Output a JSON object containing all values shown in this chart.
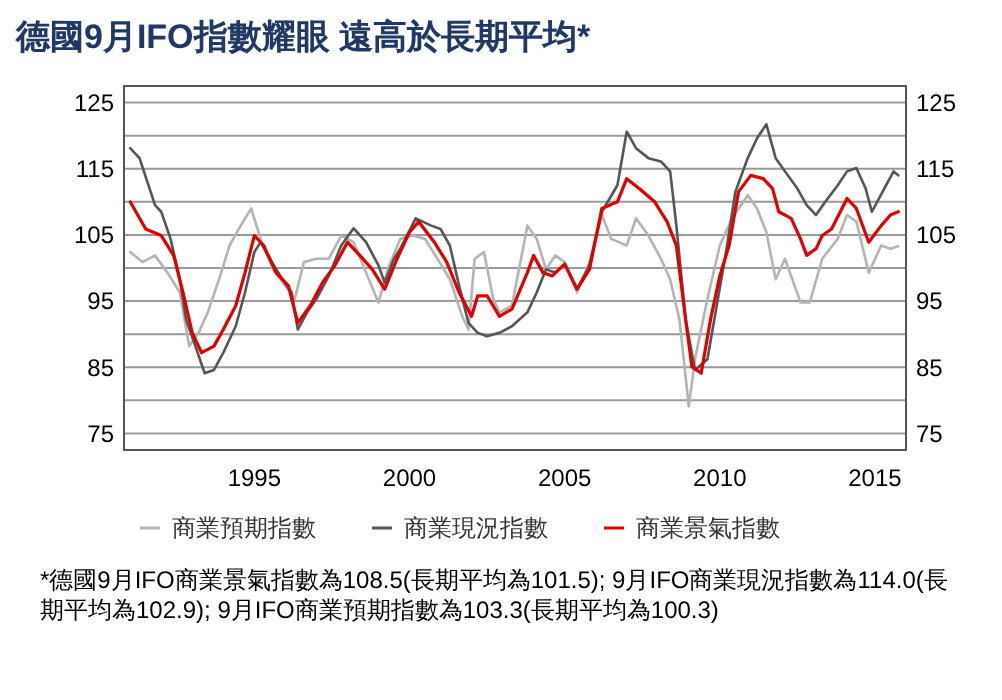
{
  "chart_data": {
    "type": "line",
    "title": "德國9月IFO指數耀眼  遠高於長期平均*",
    "xlim": [
      1990.8,
      2016
    ],
    "xticks": [
      1995,
      2000,
      2005,
      2010,
      2015
    ],
    "ylim": [
      72.5,
      127.5
    ],
    "yticks": [
      75,
      85,
      95,
      105,
      115,
      125
    ],
    "y2lim": [
      72.5,
      127.5
    ],
    "y2ticks": [
      75,
      85,
      95,
      105,
      115,
      125
    ],
    "grid": "y",
    "legend": "bottom",
    "line_style": "solid",
    "series": [
      {
        "name": "商業預期指數",
        "color": "#b4b4b4",
        "x": [
          1991.0,
          1991.4,
          1991.8,
          1992.2,
          1992.6,
          1992.9,
          1993.2,
          1993.5,
          1993.9,
          1994.2,
          1994.5,
          1994.9,
          1995.2,
          1995.6,
          1996.0,
          1996.3,
          1996.6,
          1997.0,
          1997.4,
          1997.8,
          1998.2,
          1998.6,
          1999.0,
          1999.3,
          1999.7,
          2000.1,
          2000.5,
          2000.9,
          2001.3,
          2001.7,
          2001.9,
          2002.1,
          2002.4,
          2002.7,
          2002.9,
          2003.3,
          2003.8,
          2004.1,
          2004.4,
          2004.7,
          2005.0,
          2005.4,
          2005.8,
          2006.2,
          2006.5,
          2007.0,
          2007.3,
          2007.7,
          2008.1,
          2008.4,
          2008.7,
          2009.0,
          2009.2,
          2009.6,
          2010.0,
          2010.4,
          2010.9,
          2011.2,
          2011.5,
          2011.8,
          2012.1,
          2012.6,
          2012.9,
          2013.3,
          2013.8,
          2014.1,
          2014.4,
          2014.8,
          2015.2,
          2015.5,
          2015.75
        ],
        "values": [
          102.4,
          100.9,
          101.9,
          99.3,
          96.3,
          88.2,
          90.2,
          93.3,
          98.8,
          103.4,
          105.9,
          109.0,
          104.4,
          99.8,
          97.3,
          95.3,
          100.9,
          101.4,
          101.4,
          104.9,
          103.9,
          99.3,
          94.8,
          99.8,
          104.4,
          104.9,
          104.4,
          101.4,
          98.3,
          92.7,
          90.7,
          101.4,
          102.4,
          95.3,
          93.3,
          94.3,
          106.4,
          104.4,
          99.8,
          101.9,
          100.9,
          96.3,
          100.9,
          108.0,
          104.4,
          103.4,
          107.5,
          104.9,
          101.4,
          98.3,
          92.2,
          79.1,
          86.2,
          95.3,
          103.4,
          107.5,
          111.0,
          109.0,
          105.4,
          98.3,
          101.4,
          94.8,
          94.8,
          101.4,
          104.4,
          108.0,
          107.0,
          99.3,
          103.4,
          102.9,
          103.3
        ]
      },
      {
        "name": "商業現況指數",
        "color": "#555555",
        "x": [
          1991.0,
          1991.3,
          1991.8,
          1992.0,
          1992.3,
          1992.6,
          1992.8,
          1993.1,
          1993.4,
          1993.7,
          1994.0,
          1994.4,
          1994.7,
          1995.0,
          1995.2,
          1995.5,
          1995.9,
          1996.2,
          1996.4,
          1996.7,
          1997.0,
          1997.4,
          1997.8,
          1998.2,
          1998.6,
          1999.0,
          1999.2,
          1999.5,
          1999.7,
          2000.2,
          2000.7,
          2001.0,
          2001.3,
          2001.6,
          2001.9,
          2002.2,
          2002.5,
          2002.9,
          2003.3,
          2003.8,
          2004.1,
          2004.4,
          2004.7,
          2005.0,
          2005.4,
          2005.8,
          2006.2,
          2006.7,
          2007.0,
          2007.3,
          2007.7,
          2008.1,
          2008.4,
          2008.6,
          2008.9,
          2009.2,
          2009.6,
          2009.9,
          2010.2,
          2010.5,
          2010.9,
          2011.2,
          2011.5,
          2011.8,
          2012.1,
          2012.5,
          2012.8,
          2013.1,
          2013.4,
          2013.8,
          2014.1,
          2014.4,
          2014.7,
          2014.9,
          2015.3,
          2015.6,
          2015.75
        ],
        "values": [
          118.1,
          116.6,
          109.5,
          108.5,
          104.4,
          98.3,
          92.2,
          88.2,
          84.1,
          84.6,
          87.2,
          91.2,
          96.3,
          102.4,
          103.9,
          101.4,
          98.3,
          96.3,
          90.7,
          93.3,
          95.3,
          98.8,
          103.4,
          106.0,
          103.9,
          100.4,
          97.8,
          101.4,
          102.9,
          107.5,
          106.4,
          105.9,
          103.4,
          97.3,
          91.7,
          90.2,
          89.7,
          90.2,
          91.2,
          93.3,
          96.3,
          99.8,
          99.3,
          100.6,
          96.8,
          100.4,
          108.5,
          112.5,
          120.6,
          118.1,
          116.6,
          116.1,
          114.6,
          106.4,
          92.2,
          84.6,
          86.2,
          94.3,
          102.4,
          111.5,
          116.6,
          119.6,
          121.7,
          116.6,
          114.6,
          112.0,
          109.5,
          108.0,
          110.0,
          112.5,
          114.6,
          115.1,
          112.0,
          108.5,
          112.0,
          114.6,
          114.0
        ]
      },
      {
        "name": "商業景氣指數",
        "color": "#e00000",
        "x": [
          1991.0,
          1991.5,
          1992.0,
          1992.4,
          1992.7,
          1993.0,
          1993.3,
          1993.7,
          1994.0,
          1994.4,
          1994.7,
          1995.0,
          1995.3,
          1995.7,
          1996.1,
          1996.4,
          1996.8,
          1997.2,
          1997.6,
          1998.0,
          1998.4,
          1998.8,
          1999.2,
          1999.6,
          2000.0,
          2000.3,
          2000.8,
          2001.2,
          2001.6,
          2002.0,
          2002.2,
          2002.5,
          2002.9,
          2003.3,
          2003.8,
          2004.0,
          2004.3,
          2004.6,
          2005.0,
          2005.4,
          2005.8,
          2006.2,
          2006.7,
          2007.0,
          2007.4,
          2007.9,
          2008.3,
          2008.6,
          2008.9,
          2009.1,
          2009.4,
          2009.7,
          2010.0,
          2010.3,
          2010.6,
          2011.0,
          2011.4,
          2011.7,
          2011.9,
          2012.3,
          2012.6,
          2012.8,
          2013.1,
          2013.3,
          2013.6,
          2014.1,
          2014.4,
          2014.8,
          2015.2,
          2015.5,
          2015.75
        ],
        "values": [
          110.0,
          105.9,
          104.9,
          101.9,
          96.3,
          90.2,
          87.2,
          88.2,
          90.7,
          94.3,
          99.3,
          104.9,
          103.4,
          99.3,
          97.3,
          91.7,
          94.3,
          97.8,
          100.4,
          103.9,
          101.9,
          99.8,
          96.8,
          101.4,
          105.4,
          107.0,
          103.9,
          100.9,
          96.3,
          92.7,
          95.8,
          95.8,
          92.7,
          93.8,
          99.3,
          101.9,
          99.3,
          98.8,
          100.6,
          96.8,
          99.8,
          109.0,
          110.0,
          113.5,
          112.0,
          110.0,
          107.0,
          103.4,
          92.2,
          85.1,
          84.1,
          92.2,
          98.8,
          103.4,
          111.5,
          114.0,
          113.5,
          112.0,
          108.5,
          107.5,
          104.4,
          101.9,
          102.9,
          104.9,
          105.9,
          110.5,
          109.0,
          103.9,
          106.4,
          108.0,
          108.5
        ]
      }
    ],
    "annotations": [
      "*德國9月IFO商業景氣指數為108.5(長期平均為101.5); 9月IFO商業現況指數為114.0(長期平均為102.9); 9月IFO商業預期指數為103.3(長期平均為100.3)"
    ]
  }
}
